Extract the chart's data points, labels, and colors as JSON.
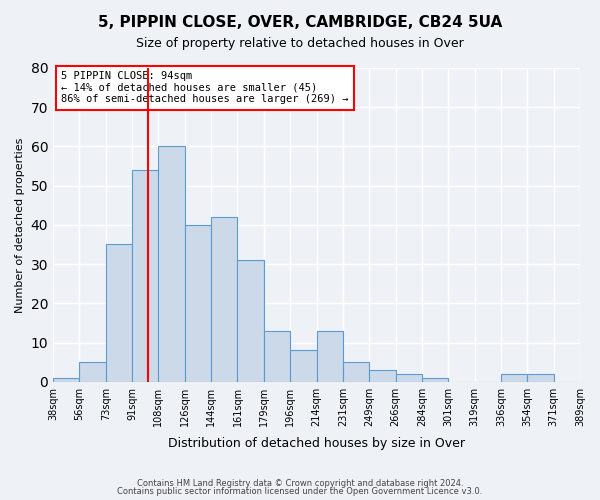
{
  "title": "5, PIPPIN CLOSE, OVER, CAMBRIDGE, CB24 5UA",
  "subtitle": "Size of property relative to detached houses in Over",
  "xlabel": "Distribution of detached houses by size in Over",
  "ylabel": "Number of detached properties",
  "bar_color": "#ccd9e8",
  "bar_edge_color": "#5b9bd5",
  "background_color": "#eef2f7",
  "grid_color": "#ffffff",
  "red_line_x": 94,
  "annotation_title": "5 PIPPIN CLOSE: 94sqm",
  "annotation_line1": "← 14% of detached houses are smaller (45)",
  "annotation_line2": "86% of semi-detached houses are larger (269) →",
  "bin_edges": [
    29,
    47,
    65,
    83,
    101,
    119,
    137,
    155,
    173,
    191,
    209,
    227,
    245,
    263,
    281,
    299,
    317,
    335,
    353,
    371,
    389
  ],
  "bin_labels": [
    "38sqm",
    "56sqm",
    "73sqm",
    "91sqm",
    "108sqm",
    "126sqm",
    "144sqm",
    "161sqm",
    "179sqm",
    "196sqm",
    "214sqm",
    "231sqm",
    "249sqm",
    "266sqm",
    "284sqm",
    "301sqm",
    "319sqm",
    "336sqm",
    "354sqm",
    "371sqm",
    "389sqm"
  ],
  "counts": [
    1,
    5,
    35,
    54,
    60,
    40,
    42,
    31,
    13,
    8,
    13,
    5,
    3,
    2,
    1,
    0,
    0,
    2,
    2,
    0
  ],
  "ylim": [
    0,
    80
  ],
  "yticks": [
    0,
    10,
    20,
    30,
    40,
    50,
    60,
    70,
    80
  ],
  "footer1": "Contains HM Land Registry data © Crown copyright and database right 2024.",
  "footer2": "Contains public sector information licensed under the Open Government Licence v3.0."
}
